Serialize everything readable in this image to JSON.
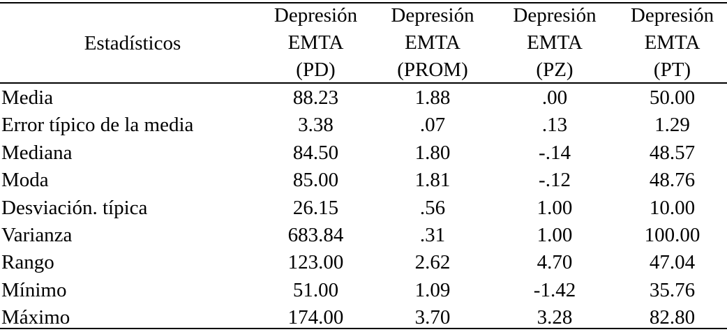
{
  "table": {
    "header": {
      "label": "Estadísticos",
      "columns": [
        [
          "Depresión",
          "EMTA",
          "(PD)"
        ],
        [
          "Depresión",
          "EMTA",
          "(PROM)"
        ],
        [
          "Depresión",
          "EMTA",
          "(PZ)"
        ],
        [
          "Depresión",
          "EMTA",
          "(PT)"
        ]
      ]
    },
    "rows": [
      [
        "Media",
        "88.23",
        "1.88",
        ".00",
        "50.00"
      ],
      [
        "Error típico de la media",
        "3.38",
        ".07",
        ".13",
        "1.29"
      ],
      [
        "Mediana",
        "84.50",
        "1.80",
        "-.14",
        "48.57"
      ],
      [
        "Moda",
        "85.00",
        "1.81",
        "-.12",
        "48.76"
      ],
      [
        "Desviación. típica",
        "26.15",
        ".56",
        "1.00",
        "10.00"
      ],
      [
        "Varianza",
        "683.84",
        ".31",
        "1.00",
        "100.00"
      ],
      [
        "Rango",
        "123.00",
        "2.62",
        "4.70",
        "47.04"
      ],
      [
        "Mínimo",
        "51.00",
        "1.09",
        "-1.42",
        "35.76"
      ],
      [
        "Máximo",
        "174.00",
        "3.70",
        "3.28",
        "82.80"
      ]
    ]
  }
}
